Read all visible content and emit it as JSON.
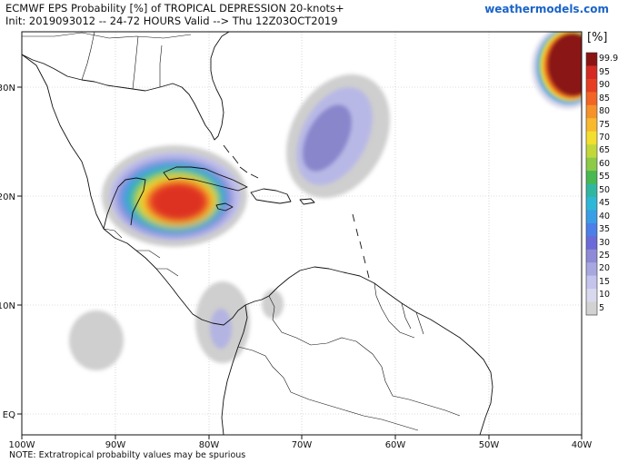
{
  "header": {
    "title": "ECMWF EPS Probability [%] of TROPICAL DEPRESSION 20-knots+",
    "init": "Init: 2019093012 -- 24-72 HOURS Valid --> Thu 12Z03OCT2019",
    "brand": "weathermodels.com"
  },
  "axes": {
    "lat_labels": [
      "30N",
      "20N",
      "10N",
      "EQ"
    ],
    "lon_labels": [
      "100W",
      "90W",
      "80W",
      "70W",
      "60W",
      "50W",
      "40W"
    ]
  },
  "colorbar": {
    "unit": "[%]",
    "levels": [
      "99.9",
      "95",
      "90",
      "85",
      "80",
      "75",
      "70",
      "65",
      "60",
      "55",
      "50",
      "45",
      "40",
      "35",
      "30",
      "25",
      "20",
      "15",
      "10",
      "5"
    ],
    "colors": [
      "#8a1414",
      "#d42a24",
      "#e63e23",
      "#f26524",
      "#f6922a",
      "#f9b92f",
      "#f3df2e",
      "#c2d83a",
      "#8ccb46",
      "#47b950",
      "#31b7a0",
      "#2eb8d8",
      "#3a9ee6",
      "#4c7fe8",
      "#6c6ad8",
      "#8e8ad6",
      "#a8a8e0",
      "#c4c4ec",
      "#d8d8ee",
      "#d2d2d2"
    ]
  },
  "note": "NOTE: Extratropical probabilty values may be spurious"
}
